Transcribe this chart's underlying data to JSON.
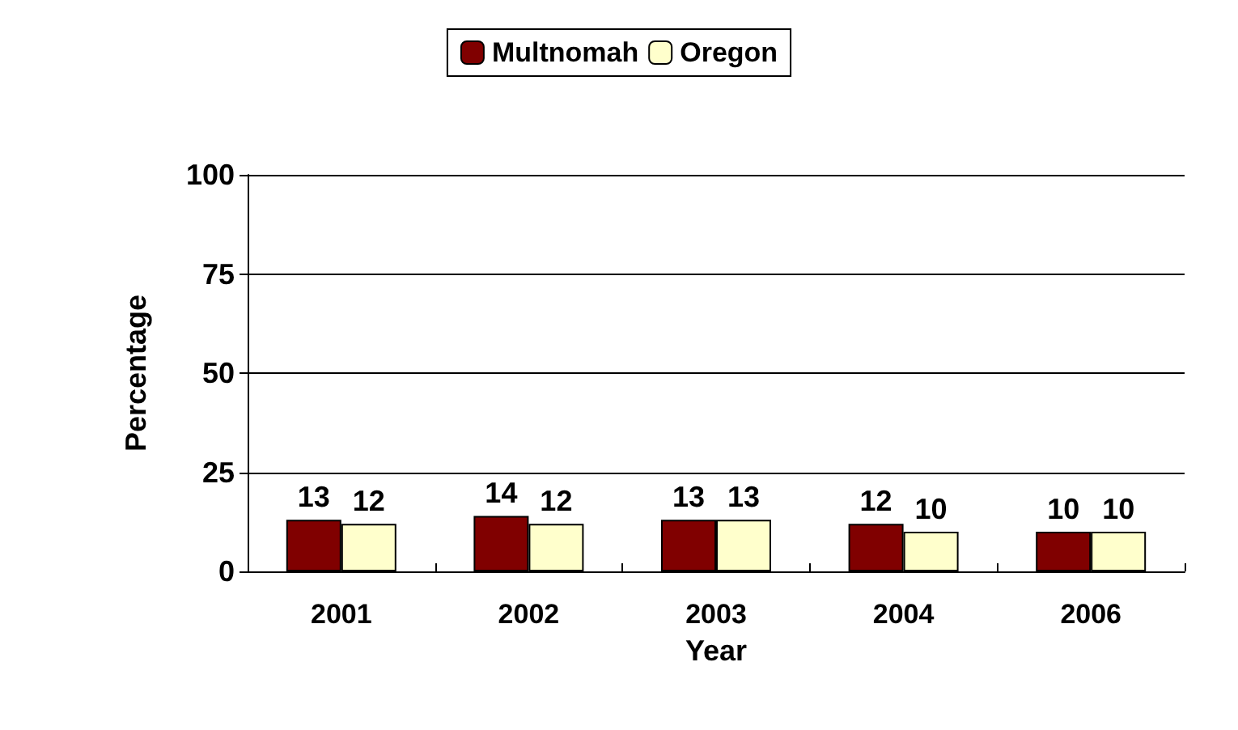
{
  "chart_data": {
    "type": "bar",
    "xlabel": "Year",
    "ylabel": "Percentage",
    "categories": [
      "2001",
      "2002",
      "2003",
      "2004",
      "2006"
    ],
    "series": [
      {
        "name": "Multnomah",
        "color": "#800000",
        "values": [
          13,
          14,
          13,
          12,
          10
        ]
      },
      {
        "name": "Oregon",
        "color": "#ffffcc",
        "values": [
          12,
          12,
          13,
          10,
          10
        ]
      }
    ],
    "ylim": [
      0,
      100
    ],
    "yticks": [
      0,
      25,
      50,
      75,
      100
    ],
    "grid": "y",
    "legend": "top",
    "data_labels": true
  }
}
